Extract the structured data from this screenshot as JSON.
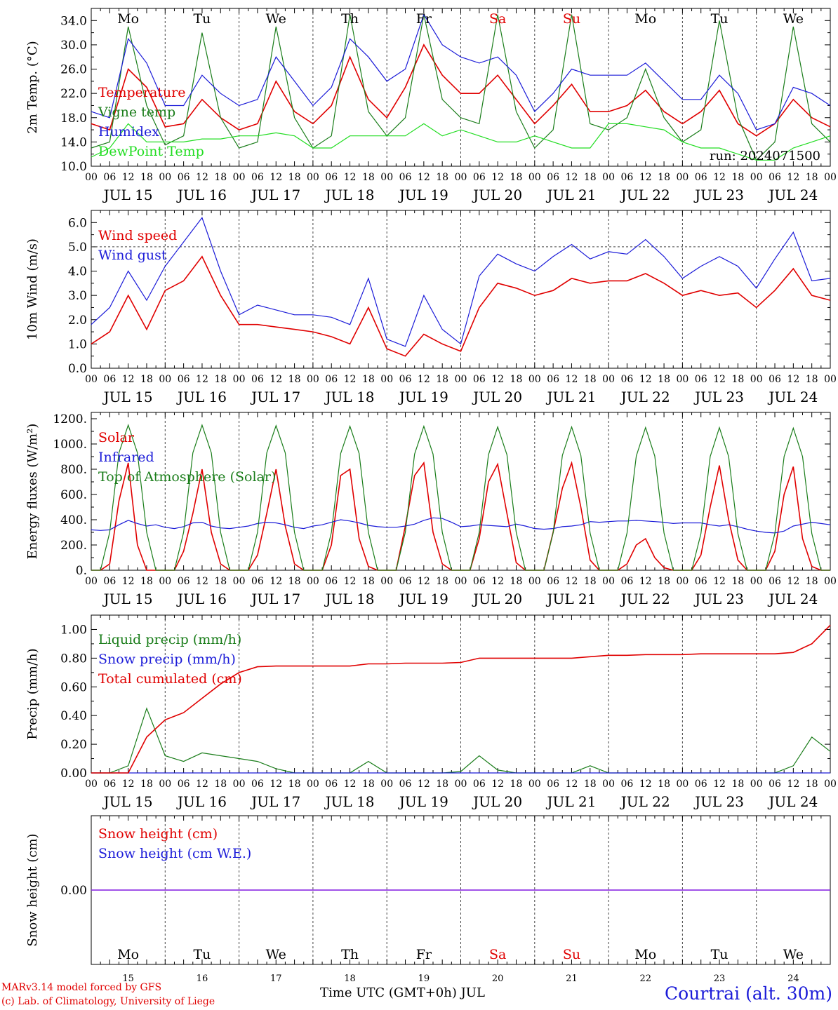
{
  "run_label": "run: 2024071500",
  "colors": {
    "red": "#e00000",
    "green": "#1a7d1a",
    "blue": "#1b1bd8",
    "lightgreen": "#22dd22",
    "purple": "#8a2be2",
    "weekend": "#e00000"
  },
  "day_names": [
    "Mo",
    "Tu",
    "We",
    "Th",
    "Fr",
    "Sa",
    "Su",
    "Mo",
    "Tu",
    "We"
  ],
  "day_numbers": [
    "15",
    "16",
    "17",
    "18",
    "19",
    "20",
    "21",
    "22",
    "23",
    "24"
  ],
  "date_labels": [
    "JUL 15",
    "JUL 16",
    "JUL 17",
    "JUL 18",
    "JUL 19",
    "JUL 20",
    "JUL 21",
    "JUL 22",
    "JUL 23",
    "JUL 24"
  ],
  "hour_labels": [
    "00",
    "06",
    "12",
    "18"
  ],
  "footer": {
    "model": "MARv3.14 model forced by GFS",
    "copyright": "(c) Lab. of Climatology, University of Liege",
    "xlabel": "Time UTC (GMT+0h) JUL",
    "station": "Courtrai (alt. 30m)"
  },
  "chart_data": [
    {
      "type": "line",
      "ylabel": "2m Temp. (°C)",
      "ylim": [
        10,
        36
      ],
      "yticks": [
        "10.0",
        "14.0",
        "18.0",
        "22.0",
        "26.0",
        "30.0",
        "34.0"
      ],
      "x_hours": [
        0,
        6,
        12,
        18,
        24,
        30,
        36,
        42,
        48,
        54,
        60,
        66,
        72,
        78,
        84,
        90,
        96,
        102,
        108,
        114,
        120,
        126,
        132,
        138,
        144,
        150,
        156,
        162,
        168,
        174,
        180,
        186,
        192,
        198,
        204,
        210,
        216,
        222,
        228,
        234,
        240
      ],
      "series": [
        {
          "name": "Temperature",
          "color": "red",
          "values": [
            17,
            16,
            26,
            23,
            16.5,
            17,
            21,
            18,
            16,
            17,
            24,
            19,
            17,
            20,
            28,
            21,
            18,
            23,
            30,
            25,
            22,
            22,
            25,
            21,
            17,
            20,
            23.5,
            19,
            19,
            20,
            22.5,
            19,
            17,
            19,
            22.5,
            17,
            15,
            17,
            21,
            18,
            16.5
          ]
        },
        {
          "name": "Vigne temp",
          "color": "green",
          "values": [
            13,
            14,
            33,
            20,
            13.5,
            15,
            32,
            18,
            13,
            14,
            33,
            18,
            13,
            15,
            35,
            19,
            15,
            18,
            35,
            21,
            18,
            17,
            35,
            19,
            13,
            16,
            35,
            17,
            16,
            18,
            26,
            18,
            14,
            16,
            34,
            18,
            11,
            14,
            33,
            17,
            14
          ]
        },
        {
          "name": "Humidex",
          "color": "blue",
          "values": [
            19,
            18,
            31,
            27,
            20,
            20,
            25,
            22,
            20,
            21,
            28,
            24,
            20,
            23,
            31,
            28,
            24,
            26,
            35,
            30,
            28,
            27,
            28,
            25,
            19,
            22,
            26,
            25,
            25,
            25,
            27,
            24,
            21,
            21,
            25,
            22,
            16,
            17,
            23,
            22,
            20
          ]
        },
        {
          "name": "DewPoint Temp",
          "color": "lightgreen",
          "values": [
            11.5,
            13,
            17,
            14,
            14,
            14,
            14.5,
            14.5,
            15,
            15,
            15.5,
            15,
            13,
            13,
            15,
            15,
            15,
            15,
            17,
            15,
            16,
            15,
            14,
            14,
            15,
            14,
            13,
            13,
            17,
            17,
            16.5,
            16,
            14,
            13,
            13,
            12,
            11,
            11,
            13,
            14,
            15
          ]
        }
      ]
    },
    {
      "type": "line",
      "ylabel": "10m Wind (m/s)",
      "ylim": [
        0,
        6.5
      ],
      "yticks": [
        "0.0",
        "1.0",
        "2.0",
        "3.0",
        "4.0",
        "5.0",
        "6.0"
      ],
      "ref_line": 5.0,
      "x_hours": [
        0,
        6,
        12,
        18,
        24,
        30,
        36,
        42,
        48,
        54,
        60,
        66,
        72,
        78,
        84,
        90,
        96,
        102,
        108,
        114,
        120,
        126,
        132,
        138,
        144,
        150,
        156,
        162,
        168,
        174,
        180,
        186,
        192,
        198,
        204,
        210,
        216,
        222,
        228,
        234,
        240
      ],
      "series": [
        {
          "name": "Wind speed",
          "color": "red",
          "values": [
            1.0,
            1.5,
            3.0,
            1.6,
            3.2,
            3.6,
            4.6,
            3.0,
            1.8,
            1.8,
            1.7,
            1.6,
            1.5,
            1.3,
            1.0,
            2.5,
            0.8,
            0.5,
            1.4,
            1.0,
            0.7,
            2.5,
            3.5,
            3.3,
            3.0,
            3.2,
            3.7,
            3.5,
            3.6,
            3.6,
            3.9,
            3.5,
            3.0,
            3.2,
            3.0,
            3.1,
            2.5,
            3.2,
            4.1,
            3.0,
            2.8
          ]
        },
        {
          "name": "Wind gust",
          "color": "blue",
          "values": [
            1.8,
            2.5,
            4.0,
            2.8,
            4.2,
            5.2,
            6.2,
            4.0,
            2.2,
            2.6,
            2.4,
            2.2,
            2.2,
            2.1,
            1.8,
            3.7,
            1.2,
            0.9,
            3.0,
            1.6,
            1.0,
            3.8,
            4.7,
            4.3,
            4.0,
            4.6,
            5.1,
            4.5,
            4.8,
            4.7,
            5.3,
            4.6,
            3.7,
            4.2,
            4.6,
            4.2,
            3.3,
            4.5,
            5.6,
            3.6,
            3.7
          ]
        }
      ]
    },
    {
      "type": "line",
      "ylabel": "Energy fluxes (W/m²)",
      "ylim": [
        0,
        1250
      ],
      "yticks": [
        "0.",
        "200.",
        "400.",
        "600.",
        "800.",
        "1000.",
        "1200."
      ],
      "x_hours": [
        0,
        3,
        6,
        9,
        12,
        15,
        18,
        21,
        24,
        27,
        30,
        33,
        36,
        39,
        42,
        45,
        48,
        51,
        54,
        57,
        60,
        63,
        66,
        69,
        72,
        75,
        78,
        81,
        84,
        87,
        90,
        93,
        96,
        99,
        102,
        105,
        108,
        111,
        114,
        117,
        120,
        123,
        126,
        129,
        132,
        135,
        138,
        141,
        144,
        147,
        150,
        153,
        156,
        159,
        162,
        165,
        168,
        171,
        174,
        177,
        180,
        183,
        186,
        189,
        192,
        195,
        198,
        201,
        204,
        207,
        210,
        213,
        216,
        219,
        222,
        225,
        228,
        231,
        234,
        237,
        240
      ],
      "series": [
        {
          "name": "Solar",
          "color": "red",
          "values": [
            0,
            0,
            50,
            550,
            850,
            200,
            0,
            0,
            0,
            0,
            150,
            450,
            800,
            300,
            50,
            0,
            0,
            0,
            120,
            450,
            800,
            350,
            50,
            0,
            0,
            0,
            200,
            750,
            800,
            250,
            30,
            0,
            0,
            0,
            350,
            750,
            850,
            300,
            50,
            0,
            0,
            0,
            250,
            700,
            840,
            450,
            60,
            0,
            0,
            0,
            300,
            650,
            850,
            500,
            80,
            0,
            0,
            0,
            50,
            200,
            250,
            100,
            20,
            0,
            0,
            0,
            120,
            500,
            830,
            400,
            80,
            0,
            0,
            0,
            150,
            600,
            820,
            250,
            30,
            0,
            0
          ]
        },
        {
          "name": "Infrared",
          "color": "blue",
          "values": [
            320,
            315,
            320,
            360,
            395,
            370,
            350,
            360,
            340,
            330,
            345,
            375,
            380,
            350,
            335,
            330,
            340,
            350,
            370,
            380,
            375,
            360,
            340,
            330,
            350,
            360,
            380,
            400,
            390,
            375,
            355,
            345,
            340,
            340,
            350,
            365,
            395,
            415,
            410,
            380,
            345,
            350,
            360,
            355,
            350,
            345,
            365,
            350,
            330,
            325,
            330,
            345,
            350,
            360,
            385,
            380,
            385,
            390,
            390,
            395,
            390,
            385,
            380,
            370,
            375,
            375,
            375,
            360,
            350,
            360,
            345,
            325,
            310,
            300,
            295,
            310,
            350,
            365,
            380,
            370,
            360
          ]
        },
        {
          "name": "Top of Atmosphere (Solar)",
          "color": "green",
          "values": [
            0,
            0,
            300,
            930,
            1150,
            930,
            300,
            0,
            0,
            0,
            300,
            930,
            1150,
            930,
            300,
            0,
            0,
            0,
            300,
            930,
            1145,
            930,
            300,
            0,
            0,
            0,
            300,
            925,
            1140,
            925,
            300,
            0,
            0,
            0,
            300,
            920,
            1140,
            920,
            300,
            0,
            0,
            0,
            300,
            915,
            1135,
            915,
            300,
            0,
            0,
            0,
            295,
            910,
            1135,
            910,
            295,
            0,
            0,
            0,
            295,
            905,
            1130,
            905,
            295,
            0,
            0,
            0,
            290,
            900,
            1130,
            900,
            290,
            0,
            0,
            0,
            290,
            900,
            1125,
            900,
            290,
            0,
            0
          ]
        }
      ]
    },
    {
      "type": "line",
      "ylabel": "Precip (mm/h)",
      "ylim": [
        0,
        1.1
      ],
      "yticks": [
        "0.00",
        "0.20",
        "0.40",
        "0.60",
        "0.80",
        "1.00"
      ],
      "x_hours": [
        0,
        6,
        12,
        18,
        24,
        30,
        36,
        42,
        48,
        54,
        60,
        66,
        72,
        78,
        84,
        90,
        96,
        102,
        108,
        114,
        120,
        126,
        132,
        138,
        144,
        150,
        156,
        162,
        168,
        174,
        180,
        186,
        192,
        198,
        204,
        210,
        216,
        222,
        228,
        234,
        240
      ],
      "series": [
        {
          "name": "Liquid precip (mm/h)",
          "color": "green",
          "values": [
            0,
            0,
            0.05,
            0.45,
            0.12,
            0.08,
            0.14,
            0.12,
            0.1,
            0.08,
            0.03,
            0,
            0,
            0,
            0,
            0.08,
            0,
            0,
            0,
            0,
            0.01,
            0.12,
            0.02,
            0,
            0,
            0,
            0,
            0.05,
            0,
            0,
            0,
            0,
            0,
            0,
            0,
            0,
            0,
            0,
            0.05,
            0.25,
            0.15
          ]
        },
        {
          "name": "Snow precip (mm/h)",
          "color": "blue",
          "values": [
            0,
            0,
            0,
            0,
            0,
            0,
            0,
            0,
            0,
            0,
            0,
            0,
            0,
            0,
            0,
            0,
            0,
            0,
            0,
            0,
            0,
            0,
            0,
            0,
            0,
            0,
            0,
            0,
            0,
            0,
            0,
            0,
            0,
            0,
            0,
            0,
            0,
            0,
            0,
            0,
            0
          ]
        },
        {
          "name": "Total cumulated (cm)",
          "color": "red",
          "values": [
            0,
            0,
            0,
            0.25,
            0.37,
            0.42,
            0.52,
            0.62,
            0.7,
            0.74,
            0.745,
            0.745,
            0.745,
            0.745,
            0.745,
            0.76,
            0.76,
            0.765,
            0.765,
            0.765,
            0.77,
            0.8,
            0.8,
            0.8,
            0.8,
            0.8,
            0.8,
            0.81,
            0.82,
            0.82,
            0.825,
            0.825,
            0.825,
            0.83,
            0.83,
            0.83,
            0.83,
            0.83,
            0.84,
            0.9,
            1.03
          ]
        }
      ]
    },
    {
      "type": "line",
      "ylabel": "Snow height (cm)",
      "ylim": [
        -1,
        1
      ],
      "yticks": [
        "0.00"
      ],
      "x_hours": [
        0,
        240
      ],
      "series": [
        {
          "name": "Snow height (cm)",
          "color": "red",
          "values": [
            0,
            0
          ]
        },
        {
          "name": "Snow height (cm W.E.)",
          "color": "blue",
          "values": [
            0,
            0
          ]
        }
      ]
    }
  ]
}
